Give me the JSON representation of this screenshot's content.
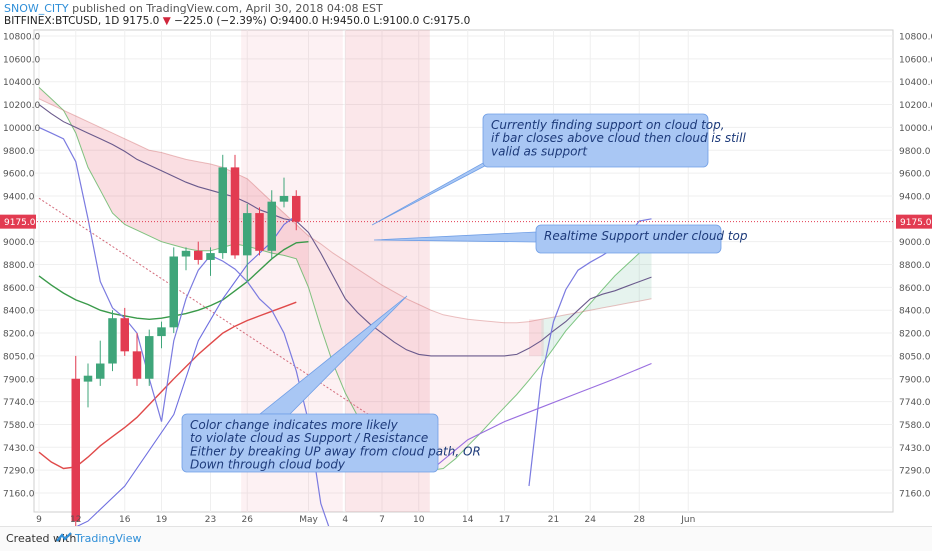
{
  "header": {
    "author": "SNOW_CITY",
    "published": "published on TradingView.com, April 30, 2018 04:08 EST",
    "symbol": "BITFINEX:BTCUSD, 1D",
    "last": "9175.0",
    "change": "−225.0 (−2.39%)",
    "ohlc": "O:9400.0 H:9450.0 L:9100.0 C:9175.0",
    "arrow": "▼"
  },
  "footer": {
    "created": "Created with",
    "brand": "TradingView"
  },
  "colors": {
    "up": "#3fa57a",
    "down": "#e23b51",
    "ann_bg": "#a9c7f4",
    "ann_border": "#6f9ee6",
    "price_line": "#e23b51"
  },
  "chart_data": {
    "type": "candlestick",
    "y_ticks": [
      "10800.0",
      "10600.0",
      "10400.0",
      "10200.0",
      "10000.0",
      "9800.0",
      "9600.0",
      "9400.0",
      "9200.0",
      "9000.0",
      "8800.0",
      "8600.0",
      "8400.0",
      "8200.0",
      "8050.0",
      "7900.0",
      "7740.0",
      "7580.0",
      "7430.0",
      "7290.0",
      "7160.0"
    ],
    "x_ticks": [
      {
        "day": 9,
        "label": "9"
      },
      {
        "day": 12,
        "label": "12"
      },
      {
        "day": 16,
        "label": "16"
      },
      {
        "day": 19,
        "label": "19"
      },
      {
        "day": 23,
        "label": "23"
      },
      {
        "day": 26,
        "label": "26"
      },
      {
        "day": 31,
        "label": "May"
      },
      {
        "day": 34,
        "label": "4"
      },
      {
        "day": 37,
        "label": "7"
      },
      {
        "day": 40,
        "label": "10"
      },
      {
        "day": 44,
        "label": "14"
      },
      {
        "day": 47,
        "label": "17"
      },
      {
        "day": 51,
        "label": "21"
      },
      {
        "day": 54,
        "label": "24"
      },
      {
        "day": 58,
        "label": "28"
      },
      {
        "day": 62,
        "label": "Jun"
      }
    ],
    "last_price": "9175.0",
    "candles": [
      {
        "d": 12,
        "o": 7900,
        "h": 8050,
        "l": 6900,
        "c": 7000
      },
      {
        "d": 13,
        "o": 7880,
        "h": 8000,
        "l": 7700,
        "c": 7920
      },
      {
        "d": 14,
        "o": 7900,
        "h": 8150,
        "l": 7850,
        "c": 8000
      },
      {
        "d": 15,
        "o": 8000,
        "h": 8400,
        "l": 7950,
        "c": 8330
      },
      {
        "d": 16,
        "o": 8330,
        "h": 8420,
        "l": 8050,
        "c": 8080
      },
      {
        "d": 17,
        "o": 8080,
        "h": 8200,
        "l": 7850,
        "c": 7900
      },
      {
        "d": 18,
        "o": 7900,
        "h": 8230,
        "l": 7850,
        "c": 8180
      },
      {
        "d": 19,
        "o": 8180,
        "h": 8300,
        "l": 8100,
        "c": 8250
      },
      {
        "d": 20,
        "o": 8250,
        "h": 8950,
        "l": 8200,
        "c": 8870
      },
      {
        "d": 21,
        "o": 8870,
        "h": 8950,
        "l": 8750,
        "c": 8920
      },
      {
        "d": 22,
        "o": 8920,
        "h": 9000,
        "l": 8800,
        "c": 8840
      },
      {
        "d": 23,
        "o": 8840,
        "h": 8950,
        "l": 8700,
        "c": 8900
      },
      {
        "d": 24,
        "o": 8900,
        "h": 9760,
        "l": 8850,
        "c": 9650
      },
      {
        "d": 25,
        "o": 9650,
        "h": 9760,
        "l": 8850,
        "c": 8880
      },
      {
        "d": 26,
        "o": 8880,
        "h": 9330,
        "l": 8650,
        "c": 9250
      },
      {
        "d": 27,
        "o": 9250,
        "h": 9300,
        "l": 8880,
        "c": 8920
      },
      {
        "d": 28,
        "o": 8920,
        "h": 9450,
        "l": 8850,
        "c": 9350
      },
      {
        "d": 29,
        "o": 9350,
        "h": 9560,
        "l": 9300,
        "c": 9400
      },
      {
        "d": 30,
        "o": 9400,
        "h": 9450,
        "l": 9100,
        "c": 9175
      }
    ],
    "annotations": [
      {
        "text": [
          "Currently finding support on cloud top,",
          "if bar closes above cloud then cloud is still",
          "valid as support"
        ]
      },
      {
        "text": [
          "Realtime Support under cloud top"
        ]
      },
      {
        "text": [
          "Color change indicates more likely",
          "to violate cloud as Support / Resistance",
          "Either by breaking UP away from cloud path, OR",
          "Down through cloud body"
        ]
      }
    ]
  }
}
